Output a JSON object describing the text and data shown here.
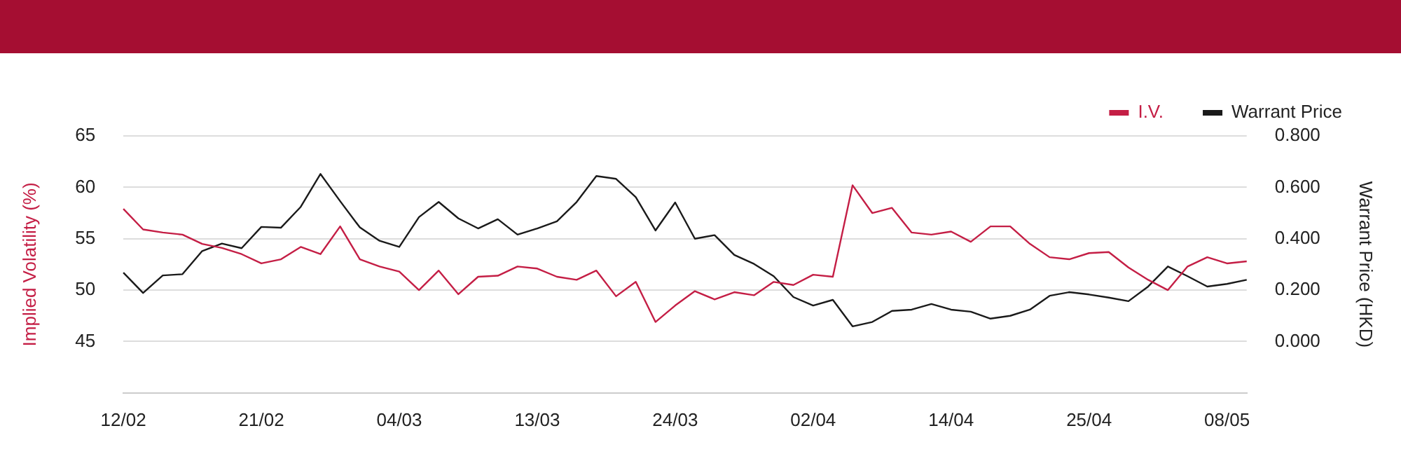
{
  "chart_data": {
    "type": "line",
    "categories": [
      "12/02",
      null,
      null,
      null,
      null,
      null,
      null,
      "21/02",
      null,
      null,
      null,
      null,
      null,
      null,
      "04/03",
      null,
      null,
      null,
      null,
      null,
      null,
      "13/03",
      null,
      null,
      null,
      null,
      null,
      null,
      "24/03",
      null,
      null,
      null,
      null,
      null,
      null,
      "02/04",
      null,
      null,
      null,
      null,
      null,
      null,
      "14/04",
      null,
      null,
      null,
      null,
      null,
      null,
      "25/04",
      null,
      null,
      null,
      null,
      null,
      null,
      "08/05",
      null
    ],
    "series": [
      {
        "name": "I.V.",
        "color": "#c41e45",
        "values": [
          57.9,
          55.9,
          55.6,
          55.4,
          54.5,
          54.1,
          53.5,
          52.6,
          53.0,
          54.2,
          53.5,
          56.2,
          53.0,
          52.3,
          51.8,
          50.0,
          51.9,
          49.6,
          51.3,
          51.4,
          52.3,
          52.1,
          51.3,
          51.0,
          51.9,
          49.4,
          50.8,
          46.9,
          48.5,
          49.9,
          49.1,
          49.8,
          49.5,
          50.8,
          50.5,
          51.5,
          51.3,
          60.2,
          57.5,
          58.0,
          55.6,
          55.4,
          55.7,
          54.7,
          56.2,
          56.2,
          54.5,
          53.2,
          53.0,
          53.6,
          53.7,
          52.2,
          51.0,
          50.0,
          52.3,
          53.2,
          52.6,
          52.8
        ]
      },
      {
        "name": "Warrant Price",
        "color": "#1a1a1a",
        "axis": "y2",
        "values": [
          0.268,
          0.189,
          0.257,
          0.262,
          0.352,
          0.381,
          0.363,
          0.446,
          0.443,
          0.524,
          0.652,
          0.546,
          0.444,
          0.392,
          0.368,
          0.484,
          0.543,
          0.479,
          0.44,
          0.476,
          0.416,
          0.44,
          0.468,
          0.543,
          0.644,
          0.633,
          0.562,
          0.432,
          0.541,
          0.4,
          0.414,
          0.337,
          0.302,
          0.254,
          0.173,
          0.14,
          0.162,
          0.059,
          0.076,
          0.119,
          0.124,
          0.146,
          0.124,
          0.116,
          0.089,
          0.1,
          0.124,
          0.178,
          0.192,
          0.183,
          0.171,
          0.157,
          0.214,
          0.292,
          0.254,
          0.214,
          0.224,
          0.24
        ]
      }
    ],
    "ylabel": "Implied Volatility (%)",
    "y2label": "Warrant Price (HKD)",
    "ylim": [
      40,
      65
    ],
    "yticks": [
      45,
      50,
      55,
      60,
      65
    ],
    "y2lim": [
      -0.2,
      0.8
    ],
    "y2ticks": [
      {
        "value": 0,
        "label": "0.000"
      },
      {
        "value": 0.2,
        "label": "0.200"
      },
      {
        "value": 0.4,
        "label": "0.400"
      },
      {
        "value": 0.6,
        "label": "0.600"
      },
      {
        "value": 0.8,
        "label": "0.800"
      }
    ],
    "grid": "y",
    "legend": "top right",
    "marker": "none",
    "line_style": "solid"
  }
}
